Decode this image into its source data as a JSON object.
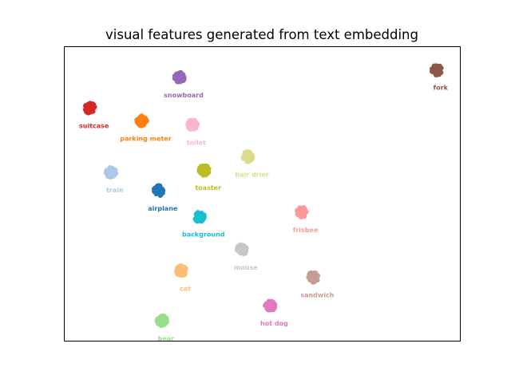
{
  "chart_data": {
    "type": "scatter",
    "title": "visual features generated from text embedding",
    "xlabel": "",
    "ylabel": "",
    "axes_visible": false,
    "grid": false,
    "legend": "none",
    "xlim": [
      0,
      100
    ],
    "ylim": [
      0,
      100
    ],
    "clusters": [
      {
        "label": "fork",
        "x": 94.1,
        "y": 92.2,
        "color": "#8c564b"
      },
      {
        "label": "snowboard",
        "x": 29.1,
        "y": 89.7,
        "color": "#9467bd"
      },
      {
        "label": "suitcase",
        "x": 6.4,
        "y": 79.2,
        "color": "#d62728"
      },
      {
        "label": "parking meter",
        "x": 19.5,
        "y": 74.9,
        "color": "#ff7f0e"
      },
      {
        "label": "toilet",
        "x": 32.3,
        "y": 73.5,
        "color": "#f7b6d2"
      },
      {
        "label": "hair drier",
        "x": 46.4,
        "y": 62.7,
        "color": "#dbdb8d"
      },
      {
        "label": "toaster",
        "x": 35.3,
        "y": 58.1,
        "color": "#bcbd22"
      },
      {
        "label": "train",
        "x": 11.7,
        "y": 57.3,
        "color": "#aec7e8"
      },
      {
        "label": "airplane",
        "x": 23.8,
        "y": 51.1,
        "color": "#1f77b4"
      },
      {
        "label": "background",
        "x": 34.1,
        "y": 42.2,
        "color": "#17becf"
      },
      {
        "label": "frisbee",
        "x": 59.9,
        "y": 43.8,
        "color": "#ff9896"
      },
      {
        "label": "mouse",
        "x": 44.8,
        "y": 31.0,
        "color": "#c7c7c7"
      },
      {
        "label": "cat",
        "x": 29.5,
        "y": 23.8,
        "color": "#ffbb78"
      },
      {
        "label": "sandwich",
        "x": 62.9,
        "y": 21.6,
        "color": "#c49c94"
      },
      {
        "label": "hot dog",
        "x": 52.0,
        "y": 11.9,
        "color": "#e377c2"
      },
      {
        "label": "bear",
        "x": 24.6,
        "y": 6.8,
        "color": "#98df8a"
      }
    ]
  }
}
